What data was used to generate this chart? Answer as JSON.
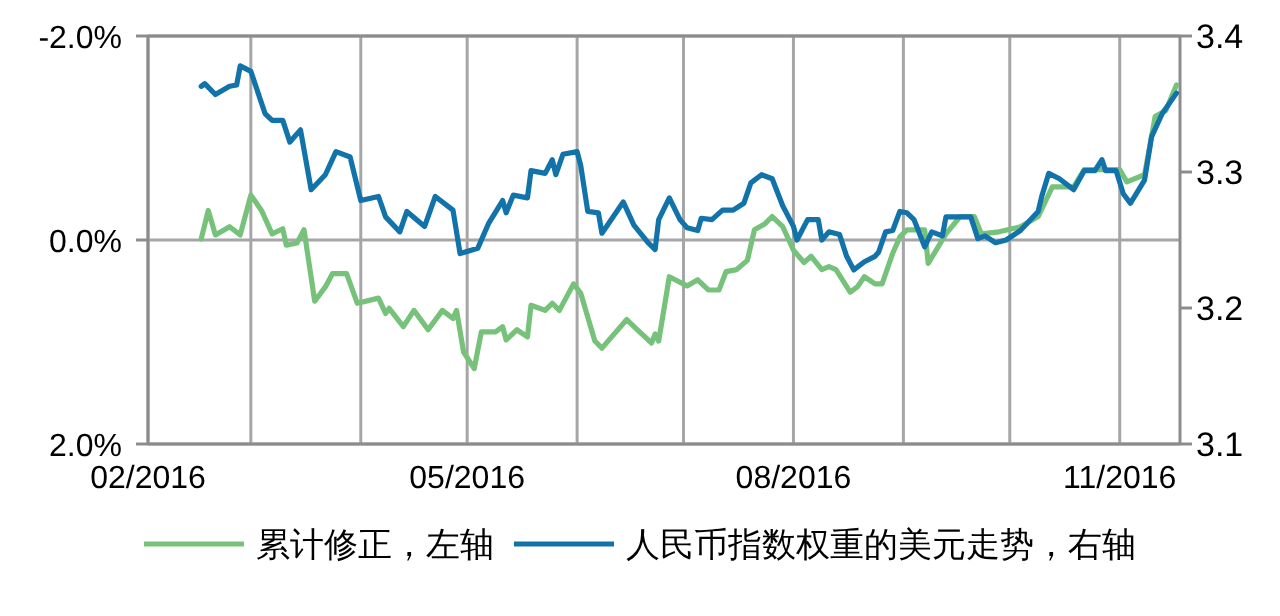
{
  "chart_data": {
    "type": "line",
    "xlim": [
      "2016-02-01",
      "2016-11-18"
    ],
    "xticks": [
      {
        "value": "2016-02-01",
        "label": "02/2016"
      },
      {
        "value": "2016-03-01",
        "label": null
      },
      {
        "value": "2016-04-01",
        "label": null
      },
      {
        "value": "2016-05-01",
        "label": "05/2016"
      },
      {
        "value": "2016-06-01",
        "label": null
      },
      {
        "value": "2016-07-01",
        "label": null
      },
      {
        "value": "2016-08-01",
        "label": "08/2016"
      },
      {
        "value": "2016-09-01",
        "label": null
      },
      {
        "value": "2016-10-01",
        "label": null
      },
      {
        "value": "2016-11-01",
        "label": "11/2016"
      }
    ],
    "ylim": [
      2.0,
      -2.0
    ],
    "yticks": [
      {
        "value": -2.0,
        "label": "-2.0%"
      },
      {
        "value": 0,
        "label": "0.0%"
      },
      {
        "value": 2.0,
        "label": "2.0%"
      }
    ],
    "y2lim": [
      3.1,
      3.4
    ],
    "y2ticks": [
      {
        "value": 3.1,
        "label": "3.1"
      },
      {
        "value": 3.2,
        "label": "3.2"
      },
      {
        "value": 3.3,
        "label": "3.3"
      },
      {
        "value": 3.4,
        "label": "3.4"
      }
    ],
    "grid": true,
    "legend": "bottom",
    "series": [
      {
        "name": "累计修正，左轴",
        "color": "#77c27a",
        "x": [
          "2016-02-16",
          "2016-02-18",
          "2016-02-20",
          "2016-02-24",
          "2016-02-27",
          "2016-03-01",
          "2016-03-04",
          "2016-03-07",
          "2016-03-10",
          "2016-03-11",
          "2016-03-14",
          "2016-03-16",
          "2016-03-19",
          "2016-03-22",
          "2016-03-24",
          "2016-03-28",
          "2016-03-31",
          "2016-04-06",
          "2016-04-08",
          "2016-04-09",
          "2016-04-13",
          "2016-04-16",
          "2016-04-20",
          "2016-04-24",
          "2016-04-27",
          "2016-04-28",
          "2016-04-30",
          "2016-05-03",
          "2016-05-05",
          "2016-05-09",
          "2016-05-11",
          "2016-05-12",
          "2016-05-15",
          "2016-05-18",
          "2016-05-19",
          "2016-05-23",
          "2016-05-25",
          "2016-05-27",
          "2016-05-31",
          "2016-06-02",
          "2016-06-06",
          "2016-06-08",
          "2016-06-15",
          "2016-06-18",
          "2016-06-22",
          "2016-06-23",
          "2016-06-24",
          "2016-06-27",
          "2016-07-02",
          "2016-07-05",
          "2016-07-08",
          "2016-07-11",
          "2016-07-13",
          "2016-07-16",
          "2016-07-19",
          "2016-07-21",
          "2016-07-24",
          "2016-07-26",
          "2016-07-29",
          "2016-08-01",
          "2016-08-04",
          "2016-08-06",
          "2016-08-09",
          "2016-08-11",
          "2016-08-13",
          "2016-08-17",
          "2016-08-19",
          "2016-08-21",
          "2016-08-24",
          "2016-08-26",
          "2016-08-29",
          "2016-08-31",
          "2016-09-02",
          "2016-09-07",
          "2016-09-08",
          "2016-09-13",
          "2016-09-17",
          "2016-09-21",
          "2016-09-23",
          "2016-09-28",
          "2016-10-04",
          "2016-10-09",
          "2016-10-13",
          "2016-10-19",
          "2016-10-22",
          "2016-10-27",
          "2016-11-01",
          "2016-11-03",
          "2016-11-08",
          "2016-11-11",
          "2016-11-14",
          "2016-11-17"
        ],
        "values": [
          -0.01,
          -0.29,
          -0.05,
          -0.13,
          -0.05,
          -0.44,
          -0.29,
          -0.06,
          -0.11,
          0.05,
          0.03,
          -0.1,
          0.6,
          0.46,
          0.33,
          0.33,
          0.62,
          0.57,
          0.72,
          0.67,
          0.85,
          0.69,
          0.88,
          0.69,
          0.77,
          0.69,
          1.1,
          1.26,
          0.9,
          0.9,
          0.85,
          0.98,
          0.88,
          0.95,
          0.64,
          0.69,
          0.62,
          0.69,
          0.43,
          0.52,
          0.99,
          1.06,
          0.78,
          0.88,
          1.01,
          0.92,
          0.99,
          0.36,
          0.45,
          0.39,
          0.49,
          0.49,
          0.31,
          0.29,
          0.2,
          -0.1,
          -0.16,
          -0.23,
          -0.13,
          0.1,
          0.22,
          0.16,
          0.29,
          0.26,
          0.29,
          0.51,
          0.46,
          0.36,
          0.43,
          0.43,
          0.13,
          -0.03,
          -0.1,
          -0.1,
          0.23,
          -0.06,
          -0.23,
          -0.23,
          -0.06,
          -0.08,
          -0.13,
          -0.23,
          -0.52,
          -0.52,
          -0.69,
          -0.69,
          -0.69,
          -0.57,
          -0.64,
          -1.21,
          -1.27,
          -1.52
        ]
      },
      {
        "name": "人民币指数权重的美元走势，右轴",
        "color": "#1273aa",
        "axis": "y2",
        "x": [
          "2016-02-16",
          "2016-02-17",
          "2016-02-20",
          "2016-02-24",
          "2016-02-26",
          "2016-02-27",
          "2016-03-01",
          "2016-03-05",
          "2016-03-07",
          "2016-03-10",
          "2016-03-12",
          "2016-03-15",
          "2016-03-18",
          "2016-03-22",
          "2016-03-25",
          "2016-03-29",
          "2016-04-01",
          "2016-04-06",
          "2016-04-08",
          "2016-04-12",
          "2016-04-14",
          "2016-04-19",
          "2016-04-22",
          "2016-04-27",
          "2016-04-29",
          "2016-05-04",
          "2016-05-07",
          "2016-05-11",
          "2016-05-12",
          "2016-05-14",
          "2016-05-18",
          "2016-05-19",
          "2016-05-23",
          "2016-05-25",
          "2016-05-26",
          "2016-05-28",
          "2016-06-01",
          "2016-06-02",
          "2016-06-04",
          "2016-06-07",
          "2016-06-08",
          "2016-06-14",
          "2016-06-17",
          "2016-06-21",
          "2016-06-23",
          "2016-06-24",
          "2016-06-27",
          "2016-06-30",
          "2016-07-02",
          "2016-07-05",
          "2016-07-06",
          "2016-07-09",
          "2016-07-12",
          "2016-07-15",
          "2016-07-18",
          "2016-07-20",
          "2016-07-23",
          "2016-07-26",
          "2016-07-29",
          "2016-08-01",
          "2016-08-02",
          "2016-08-05",
          "2016-08-08",
          "2016-08-09",
          "2016-08-11",
          "2016-08-14",
          "2016-08-16",
          "2016-08-18",
          "2016-08-21",
          "2016-08-24",
          "2016-08-25",
          "2016-08-27",
          "2016-08-29",
          "2016-08-31",
          "2016-09-02",
          "2016-09-04",
          "2016-09-07",
          "2016-09-09",
          "2016-09-12",
          "2016-09-13",
          "2016-09-18",
          "2016-09-20",
          "2016-09-22",
          "2016-09-24",
          "2016-09-27",
          "2016-09-30",
          "2016-10-04",
          "2016-10-09",
          "2016-10-10",
          "2016-10-12",
          "2016-10-15",
          "2016-10-19",
          "2016-10-22",
          "2016-10-25",
          "2016-10-27",
          "2016-10-28",
          "2016-10-31",
          "2016-11-02",
          "2016-11-04",
          "2016-11-08",
          "2016-11-10",
          "2016-11-13",
          "2016-11-17"
        ],
        "values": [
          3.363,
          3.365,
          3.357,
          3.363,
          3.364,
          3.378,
          3.374,
          3.343,
          3.338,
          3.338,
          3.322,
          3.331,
          3.287,
          3.298,
          3.315,
          3.311,
          3.279,
          3.282,
          3.267,
          3.256,
          3.271,
          3.26,
          3.282,
          3.272,
          3.24,
          3.244,
          3.262,
          3.279,
          3.27,
          3.283,
          3.281,
          3.301,
          3.299,
          3.309,
          3.298,
          3.313,
          3.315,
          3.305,
          3.271,
          3.27,
          3.255,
          3.278,
          3.261,
          3.248,
          3.243,
          3.265,
          3.281,
          3.265,
          3.259,
          3.257,
          3.266,
          3.265,
          3.272,
          3.272,
          3.277,
          3.292,
          3.298,
          3.295,
          3.275,
          3.26,
          3.25,
          3.265,
          3.265,
          3.25,
          3.256,
          3.254,
          3.238,
          3.228,
          3.234,
          3.238,
          3.241,
          3.256,
          3.257,
          3.271,
          3.27,
          3.265,
          3.245,
          3.256,
          3.253,
          3.267,
          3.267,
          3.267,
          3.251,
          3.253,
          3.248,
          3.25,
          3.257,
          3.271,
          3.282,
          3.299,
          3.295,
          3.287,
          3.301,
          3.301,
          3.309,
          3.301,
          3.301,
          3.284,
          3.277,
          3.294,
          3.326,
          3.343,
          3.358
        ]
      }
    ]
  }
}
